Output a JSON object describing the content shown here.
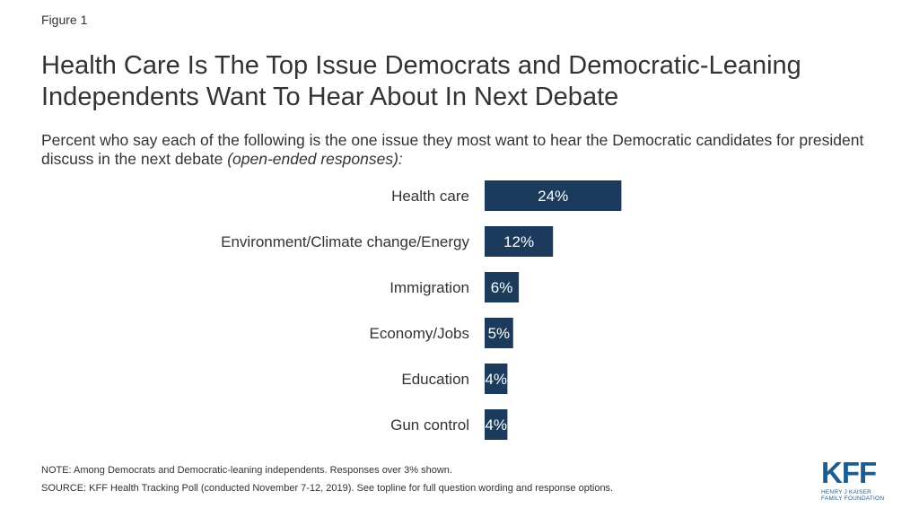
{
  "figure_label": "Figure 1",
  "title": "Health Care Is The Top Issue Democrats and Democratic-Leaning Independents Want To Hear About In Next Debate",
  "subtitle_main": "Percent who say each of the following is the one issue they most want to hear the Democratic candidates for president discuss in the next debate ",
  "subtitle_italic": "(open-ended responses):",
  "note": "NOTE: Among Democrats and Democratic-leaning independents. Responses over 3% shown.",
  "source": "SOURCE: KFF Health Tracking Poll (conducted November 7-12, 2019). See topline for full question wording and response options.",
  "logo": {
    "mark": "KFF",
    "line1": "HENRY J KAISER",
    "line2": "FAMILY FOUNDATION"
  },
  "colors": {
    "bar": "#1b3a5c",
    "bar_label": "#ffffff",
    "text": "#333333",
    "logo": "#1a5c94"
  },
  "chart_data": {
    "type": "bar",
    "orientation": "horizontal",
    "categories": [
      "Health care",
      "Environment/Climate change/Energy",
      "Immigration",
      "Economy/Jobs",
      "Education",
      "Gun control"
    ],
    "values": [
      24,
      12,
      6,
      5,
      4,
      4
    ],
    "value_labels": [
      "24%",
      "12%",
      "6%",
      "5%",
      "4%",
      "4%"
    ],
    "unit": "%",
    "grid": false,
    "legend": "none"
  }
}
